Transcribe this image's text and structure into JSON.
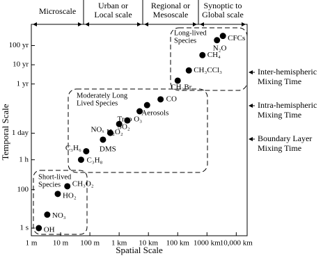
{
  "chart_data": {
    "type": "scatter",
    "x_label": "Spatial Scale",
    "y_label": "Temporal Scale",
    "log_x": true,
    "log_y": true,
    "grid": false,
    "color": "#000000",
    "xlim": [
      1,
      20000000
    ],
    "ylim": [
      0.4,
      40000000000
    ],
    "xticks": [
      {
        "value": 1,
        "label": "1 m"
      },
      {
        "value": 10,
        "label": "10 m"
      },
      {
        "value": 100,
        "label": "100 m"
      },
      {
        "value": 1000,
        "label": "1 km"
      },
      {
        "value": 10000,
        "label": "10 km"
      },
      {
        "value": 100000,
        "label": "100 km"
      },
      {
        "value": 1000000,
        "label": "1000 km"
      },
      {
        "value": 10000000,
        "label": "10,000 km"
      }
    ],
    "yticks": [
      {
        "value": 1,
        "label": "1 s"
      },
      {
        "value": 100,
        "label": "100"
      },
      {
        "value": 3600,
        "label": "1 h"
      },
      {
        "value": 86400,
        "label": "1 day"
      },
      {
        "value": 31536000,
        "label": "1 yr"
      },
      {
        "value": 315360000,
        "label": "10 yr"
      },
      {
        "value": 3153600000,
        "label": "100 yr"
      }
    ],
    "scales": [
      [
        "Microscale"
      ],
      [
        "Urban or",
        "Local scale"
      ],
      [
        "Regional or",
        "Mesoscale"
      ],
      [
        "Synoptic to",
        "Global scale"
      ]
    ],
    "groups": [
      [
        "Short-lived",
        "Species"
      ],
      [
        "Moderately Long",
        "Lived Species"
      ],
      [
        "Long-lived",
        "Species"
      ]
    ],
    "annotations": [
      [
        "Inter-hemispheric",
        "Mixing Time"
      ],
      [
        "Intra-hemispheric",
        "Mixing Time"
      ],
      [
        "Boundary Layer",
        "Mixing Time"
      ]
    ],
    "labels": [
      "OH",
      "NO₃",
      "HO₂",
      "CH₃O₂",
      "C₃H₈",
      "C₃H₆",
      "DMS",
      "NOₓ",
      "H₂O₂",
      "SO₂",
      "Trop O₃",
      "Aerosols",
      "CO",
      "CH₃Br",
      "CH₃CCl₃",
      "CH₄",
      "N₂O",
      "CFCs"
    ],
    "x": [
      1.8,
      3.5,
      8,
      17,
      50,
      75,
      280,
      500,
      1000,
      1900,
      5000,
      9000,
      26000,
      100000,
      240000,
      700000,
      2200000,
      3500000
    ],
    "y": [
      1,
      5,
      60,
      150,
      3600,
      10000,
      40000,
      90000,
      260000,
      400000,
      1200000,
      2500000,
      5000000,
      47000000,
      160000000,
      1000000000,
      6000000000,
      10000000000
    ]
  }
}
